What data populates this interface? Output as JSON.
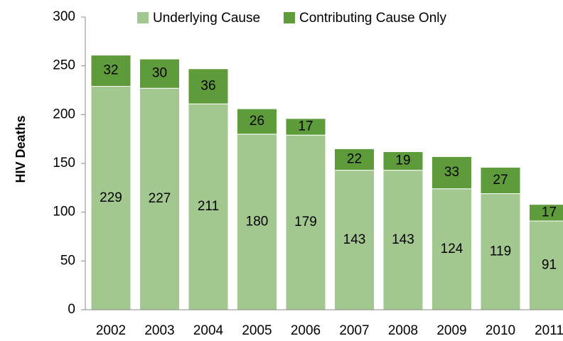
{
  "chart_data": {
    "type": "stacked_bar",
    "y_label": "HIV Deaths",
    "categories": [
      "2002",
      "2003",
      "2004",
      "2005",
      "2006",
      "2007",
      "2008",
      "2009",
      "2010",
      "2011"
    ],
    "series": [
      {
        "name": "Underlying Cause",
        "color": "#a3c88f",
        "values": [
          229,
          227,
          211,
          180,
          179,
          143,
          143,
          124,
          119,
          91
        ]
      },
      {
        "name": "Contributing Cause Only",
        "color": "#5e9b3b",
        "values": [
          32,
          30,
          36,
          26,
          17,
          22,
          19,
          33,
          27,
          17
        ]
      }
    ],
    "ylim": [
      0,
      300
    ],
    "yticks": [
      0,
      50,
      100,
      150,
      200,
      250,
      300
    ],
    "legend": "top"
  }
}
